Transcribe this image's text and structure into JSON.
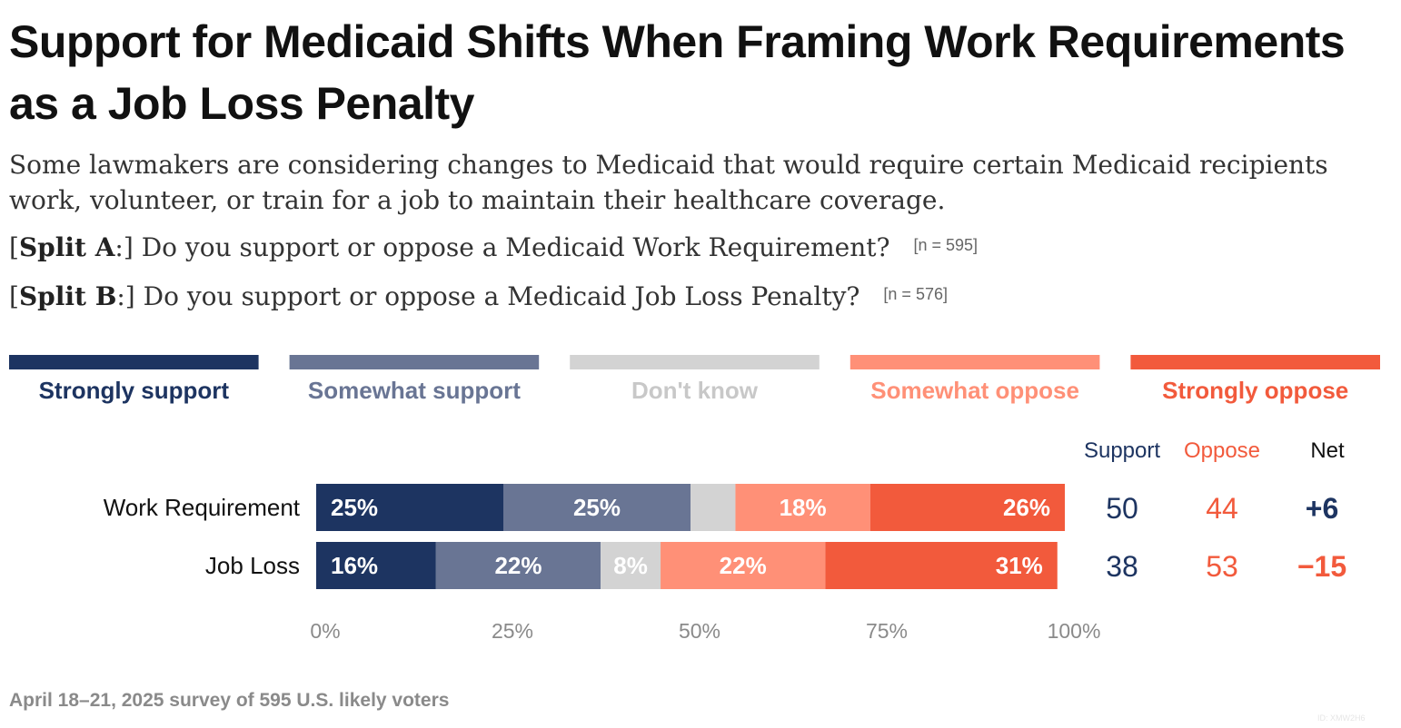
{
  "title": "Support for Medicaid Shifts When Framing Work Requirements as a Job Loss Penalty",
  "subtitle": "Some lawmakers are considering changes to Medicaid that would require certain Medicaid recipients work, volunteer, or train for a job to maintain their healthcare coverage.",
  "questions": [
    {
      "split": "Split A",
      "text": "Do you support or oppose a Medicaid Work Requirement?",
      "n": "[n = 595]"
    },
    {
      "split": "Split B",
      "text": "Do you support or oppose a Medicaid Job Loss Penalty?",
      "n": "[n = 576]"
    }
  ],
  "footer": "April 18–21, 2025 survey of 595 U.S. likely voters",
  "watermark": "ID: XMW2H6",
  "chart_data": {
    "type": "bar",
    "orientation": "horizontal-stacked",
    "categories": [
      "Work Requirement",
      "Job Loss"
    ],
    "series": [
      {
        "name": "Strongly support",
        "color": "#1d3461",
        "label_color": "#1d3461",
        "values": [
          25,
          16
        ],
        "labels": [
          "25%",
          "16%"
        ]
      },
      {
        "name": "Somewhat support",
        "color": "#697594",
        "label_color": "#697594",
        "values": [
          25,
          22
        ],
        "labels": [
          "25%",
          "22%"
        ]
      },
      {
        "name": "Don't know",
        "color": "#d3d3d3",
        "label_color": "#c8c8c8",
        "values": [
          6,
          8
        ],
        "labels": [
          "",
          "8%"
        ]
      },
      {
        "name": "Somewhat oppose",
        "color": "#ff9077",
        "label_color": "#ff9077",
        "values": [
          18,
          22
        ],
        "labels": [
          "18%",
          "22%"
        ]
      },
      {
        "name": "Strongly oppose",
        "color": "#f25a3c",
        "label_color": "#f25a3c",
        "values": [
          26,
          31
        ],
        "labels": [
          "26%",
          "31%"
        ]
      }
    ],
    "xlim": [
      0,
      100
    ],
    "x_ticks": [
      "0%",
      "25%",
      "50%",
      "75%",
      "100%"
    ],
    "summary": {
      "headers": [
        "Support",
        "Oppose",
        "Net"
      ],
      "header_colors": [
        "#1d3461",
        "#f25a3c",
        "#111111"
      ],
      "rows": [
        {
          "support": "50",
          "oppose": "44",
          "net": "+6",
          "net_color": "#1d3461"
        },
        {
          "support": "38",
          "oppose": "53",
          "net": "−15",
          "net_color": "#f25a3c"
        }
      ]
    },
    "legend_placement": "top"
  }
}
